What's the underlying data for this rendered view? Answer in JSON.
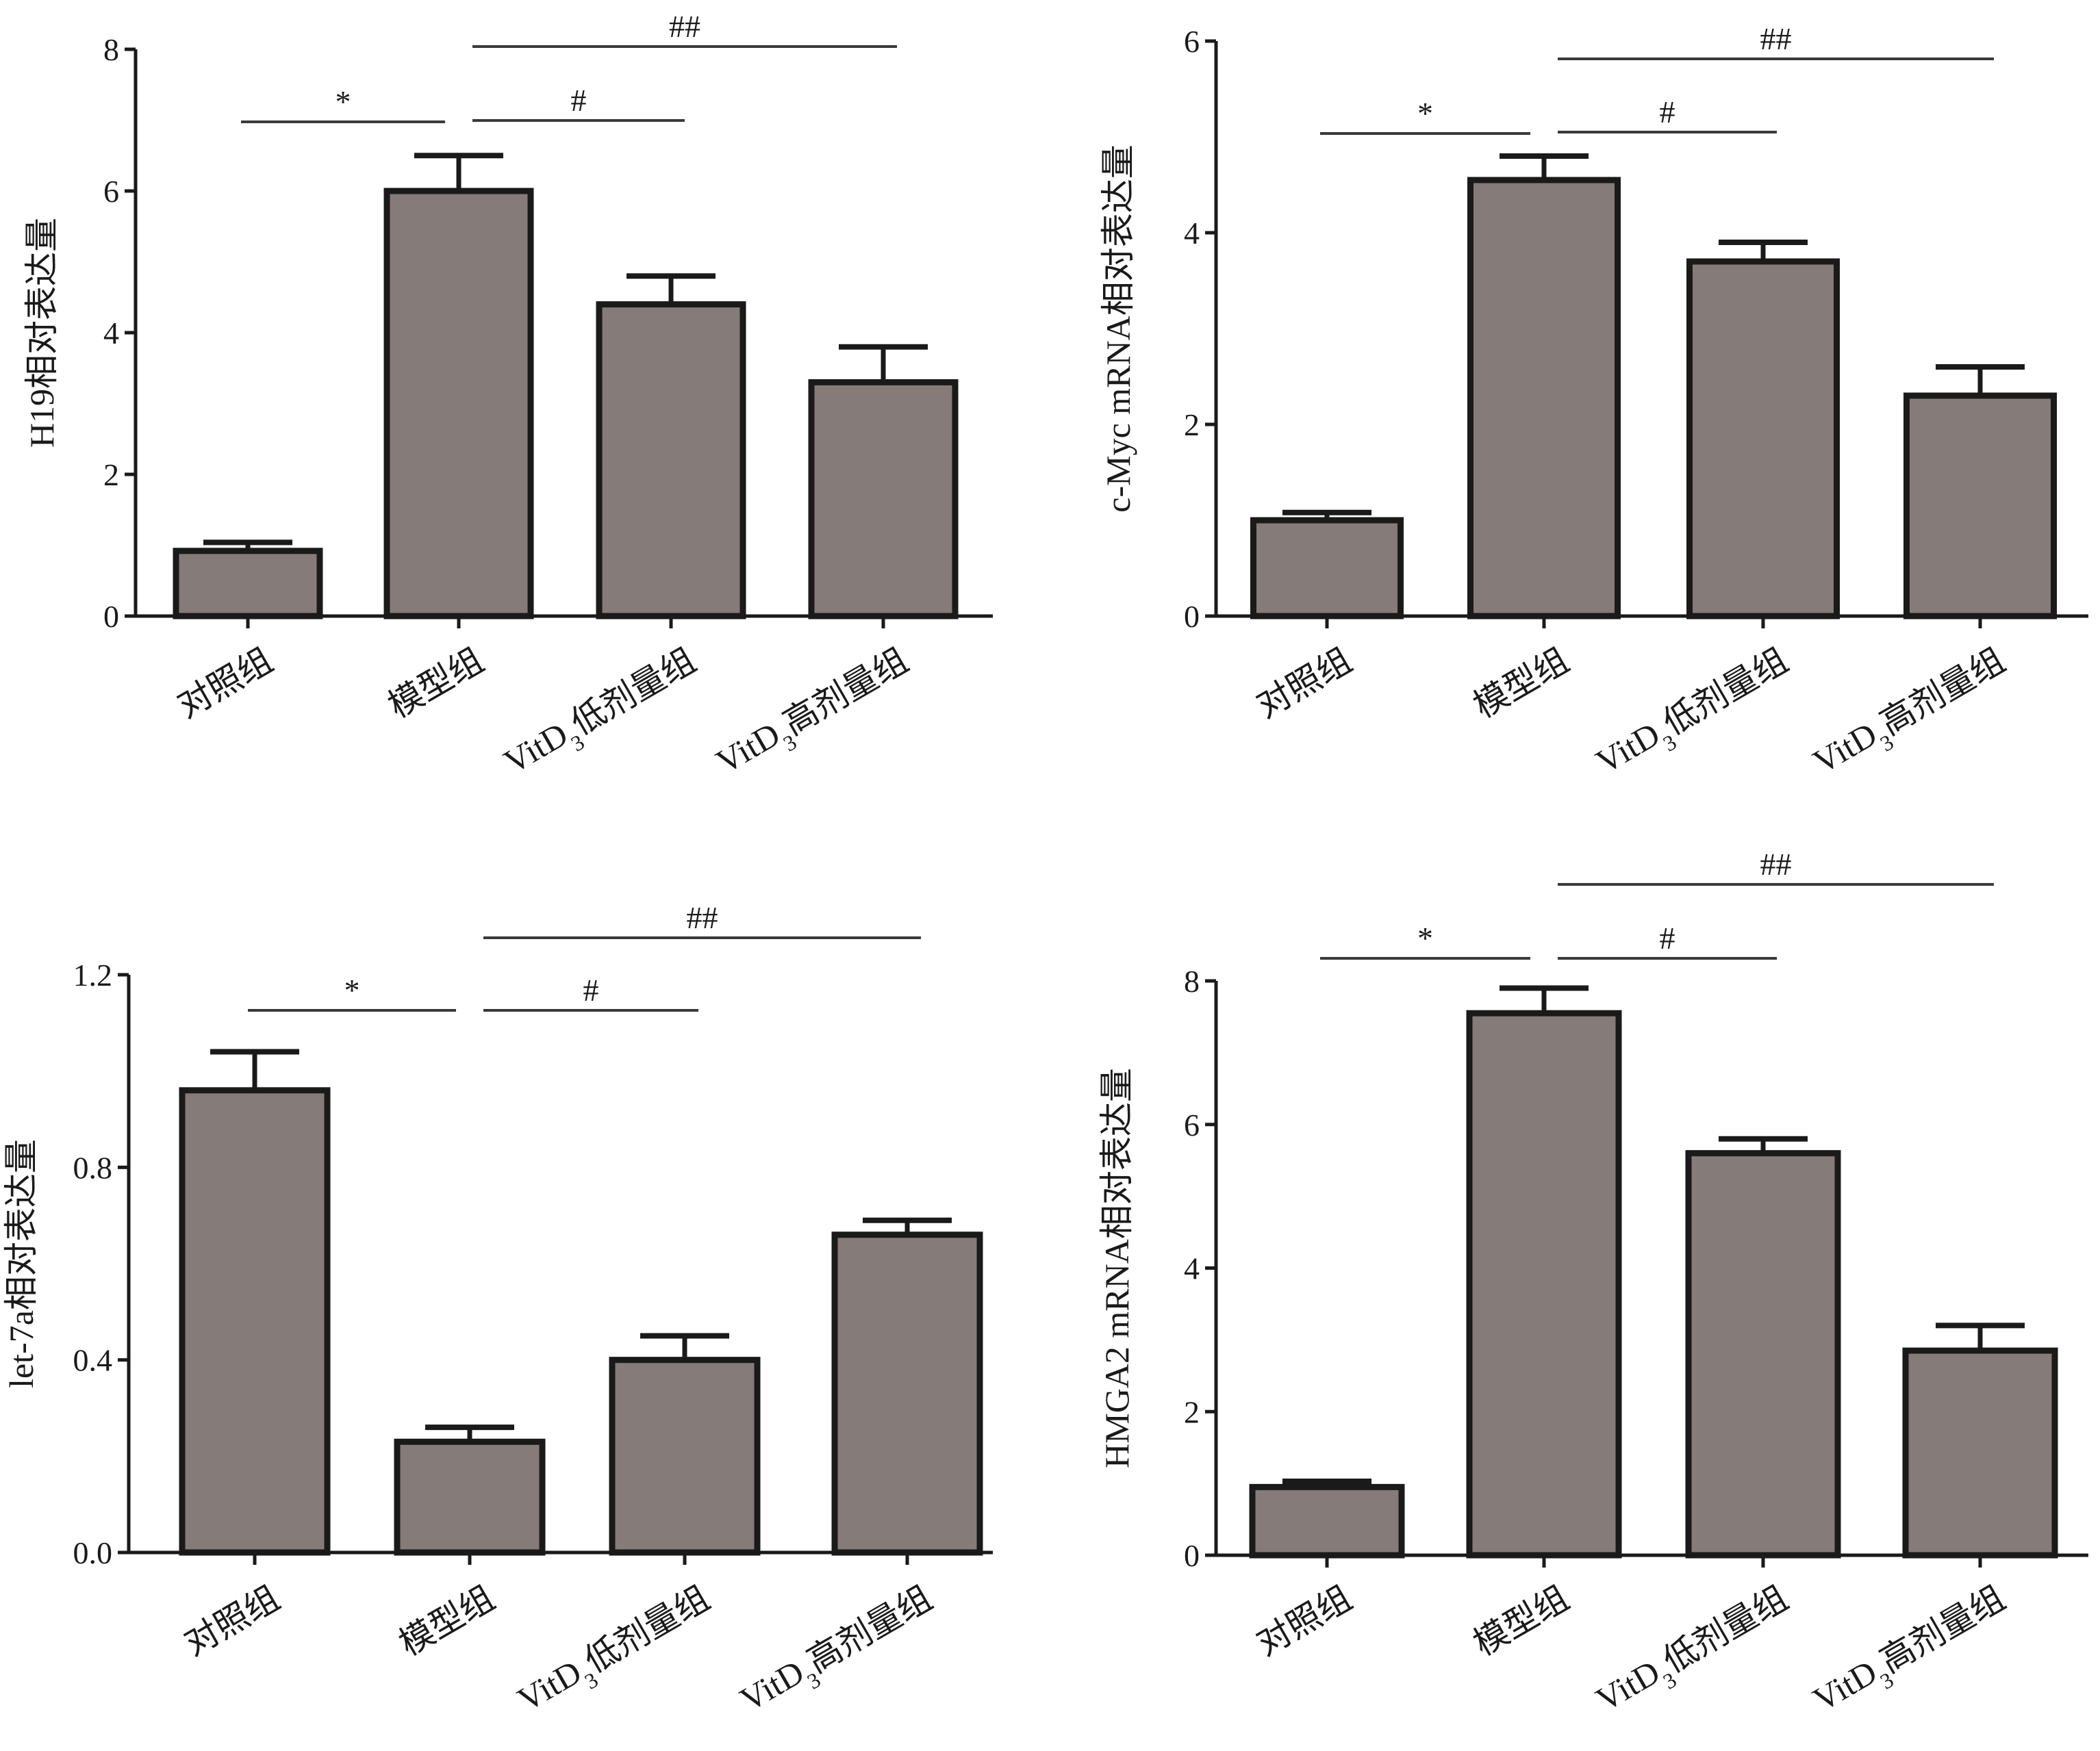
{
  "chart_data": [
    {
      "type": "bar",
      "ylabel": "H19相对表达量",
      "categories": [
        "对照组",
        "模型组",
        "VitD3低剂量组",
        "VitD3高剂量组"
      ],
      "values": [
        0.92,
        6.0,
        4.4,
        3.3
      ],
      "errors": [
        0.12,
        0.5,
        0.4,
        0.5
      ],
      "ylim": [
        0,
        8
      ],
      "yticks": [
        "0",
        "2",
        "4",
        "6",
        "8"
      ],
      "bar_color": "#857b78",
      "significance": [
        {
          "from": 0,
          "to": 1,
          "label": "*"
        },
        {
          "from": 1,
          "to": 2,
          "label": "#"
        },
        {
          "from": 1,
          "to": 3,
          "label": "##"
        }
      ]
    },
    {
      "type": "bar",
      "ylabel": "c-Myc mRNA相对表达量",
      "categories": [
        "对照组",
        "模型组",
        "VitD3低剂量组",
        "VitD3高剂量组"
      ],
      "values": [
        1.0,
        4.55,
        3.7,
        2.3
      ],
      "errors": [
        0.08,
        0.25,
        0.2,
        0.3
      ],
      "ylim": [
        0,
        6
      ],
      "yticks": [
        "0",
        "2",
        "4",
        "6"
      ],
      "bar_color": "#857b78",
      "significance": [
        {
          "from": 0,
          "to": 1,
          "label": "*"
        },
        {
          "from": 1,
          "to": 2,
          "label": "#"
        },
        {
          "from": 1,
          "to": 3,
          "label": "##"
        }
      ]
    },
    {
      "type": "bar",
      "ylabel": "let-7a相对表达量",
      "categories": [
        "对照组",
        "模型组",
        "VitD3低剂量组",
        "VitD3高剂量组"
      ],
      "values": [
        0.96,
        0.23,
        0.4,
        0.66
      ],
      "errors": [
        0.08,
        0.03,
        0.05,
        0.03
      ],
      "ylim": [
        0,
        1.2
      ],
      "yticks": [
        "0.0",
        "0.4",
        "0.8",
        "1.2"
      ],
      "bar_color": "#857b78",
      "significance": [
        {
          "from": 0,
          "to": 1,
          "label": "*"
        },
        {
          "from": 1,
          "to": 2,
          "label": "#"
        },
        {
          "from": 1,
          "to": 3,
          "label": "##"
        }
      ]
    },
    {
      "type": "bar",
      "ylabel": "HMGA2 mRNA相对表达量",
      "categories": [
        "对照组",
        "模型组",
        "VitD3低剂量组",
        "VitD3高剂量组"
      ],
      "values": [
        0.95,
        7.55,
        5.6,
        2.85
      ],
      "errors": [
        0.08,
        0.35,
        0.2,
        0.35
      ],
      "ylim": [
        0,
        8
      ],
      "yticks": [
        "0",
        "2",
        "4",
        "6",
        "8"
      ],
      "bar_color": "#857b78",
      "significance": [
        {
          "from": 0,
          "to": 1,
          "label": "*"
        },
        {
          "from": 1,
          "to": 2,
          "label": "#"
        },
        {
          "from": 1,
          "to": 3,
          "label": "##"
        }
      ]
    }
  ]
}
